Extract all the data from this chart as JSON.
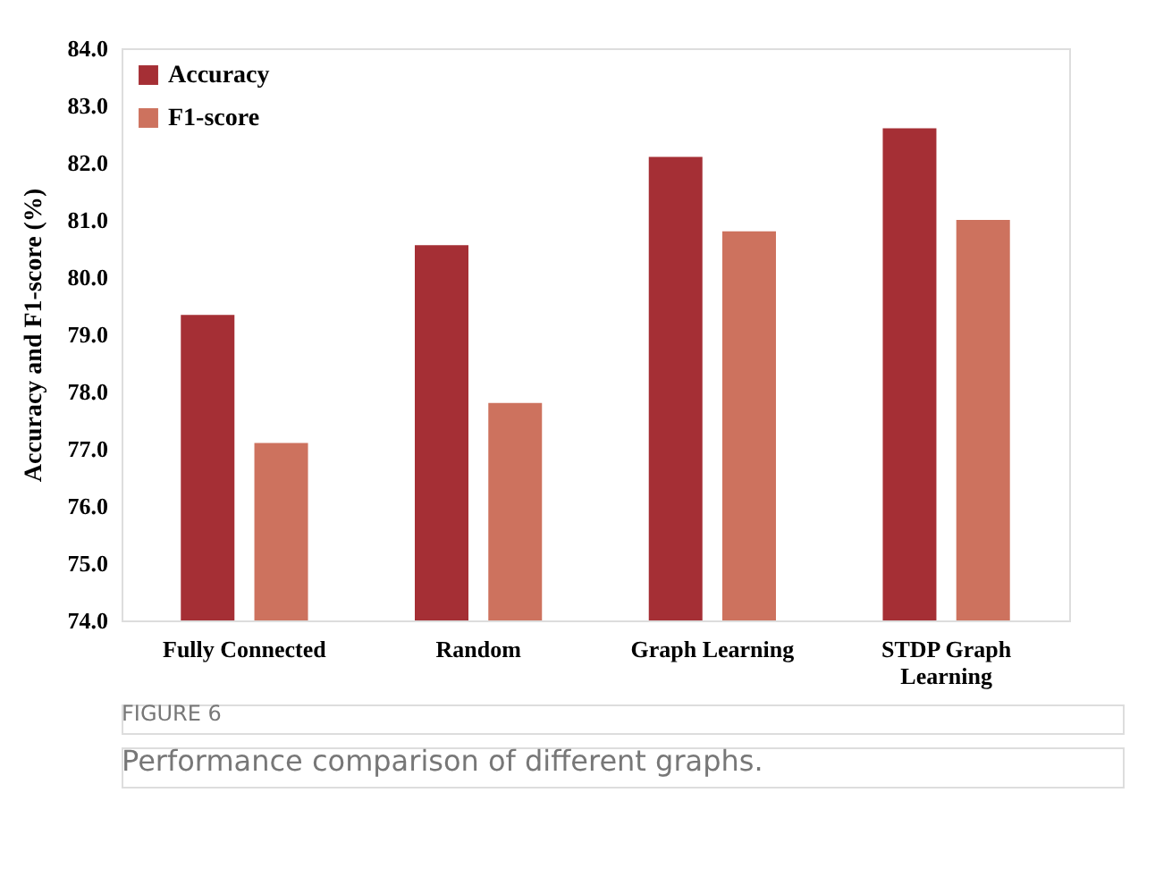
{
  "chart_data": {
    "type": "bar",
    "categories": [
      "Fully Connected",
      "Random",
      "Graph Learning",
      "STDP Graph Learning"
    ],
    "series": [
      {
        "name": "Accuracy",
        "color": "#a52f35",
        "values": [
          79.34,
          80.56,
          82.1,
          82.6
        ]
      },
      {
        "name": "F1-score",
        "color": "#cd725e",
        "values": [
          77.1,
          77.8,
          80.8,
          81.0
        ]
      }
    ],
    "ylabel": "Accuracy and F1-score (%)",
    "ylim": [
      74,
      84
    ],
    "yticks": [
      {
        "value": 74,
        "label": "74.0"
      },
      {
        "value": 75,
        "label": "75.0"
      },
      {
        "value": 76,
        "label": "76.0"
      },
      {
        "value": 77,
        "label": "77.0"
      },
      {
        "value": 78,
        "label": "78.0"
      },
      {
        "value": 79,
        "label": "79.0"
      },
      {
        "value": 80,
        "label": "80.0"
      },
      {
        "value": 81,
        "label": "81.0"
      },
      {
        "value": 82,
        "label": "82.0"
      },
      {
        "value": 83,
        "label": "83.0"
      },
      {
        "value": 84,
        "label": "84.0"
      }
    ],
    "grid": false,
    "legend": "top left",
    "annotations": [
      "FIGURE 6",
      "Performance comparison of different graphs."
    ]
  }
}
